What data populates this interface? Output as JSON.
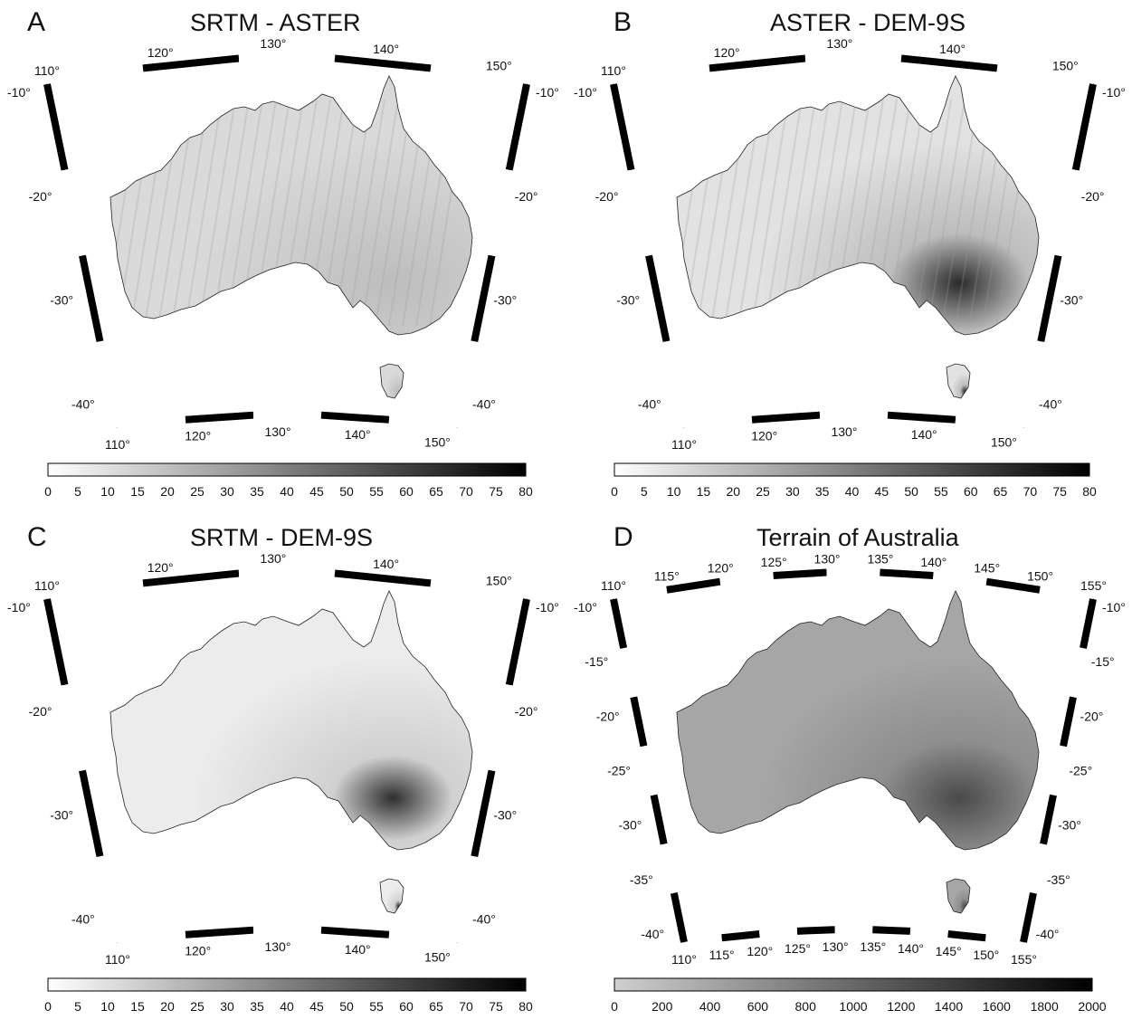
{
  "panels": [
    {
      "letter": "A",
      "title": "SRTM - ASTER",
      "top_lon_labels": [
        "110°",
        "120°",
        "130°",
        "140°",
        "150°"
      ],
      "bottom_lon_labels": [
        "110°",
        "120°",
        "130°",
        "140°",
        "150°"
      ],
      "lat_labels": [
        "-10°",
        "-20°",
        "-30°",
        "-40°"
      ],
      "colorbar_ticks": [
        "0",
        "5",
        "10",
        "15",
        "20",
        "25",
        "30",
        "35",
        "40",
        "45",
        "50",
        "55",
        "60",
        "65",
        "70",
        "75",
        "80"
      ],
      "shading": "light"
    },
    {
      "letter": "B",
      "title": "ASTER - DEM-9S",
      "top_lon_labels": [
        "110°",
        "120°",
        "130°",
        "140°",
        "150°"
      ],
      "bottom_lon_labels": [
        "110°",
        "120°",
        "130°",
        "140°",
        "150°"
      ],
      "lat_labels": [
        "-10°",
        "-20°",
        "-30°",
        "-40°"
      ],
      "colorbar_ticks": [
        "0",
        "5",
        "10",
        "15",
        "20",
        "25",
        "30",
        "35",
        "40",
        "45",
        "50",
        "55",
        "60",
        "65",
        "70",
        "75",
        "80"
      ],
      "shading": "medium"
    },
    {
      "letter": "C",
      "title": "SRTM - DEM-9S",
      "top_lon_labels": [
        "110°",
        "120°",
        "130°",
        "140°",
        "150°"
      ],
      "bottom_lon_labels": [
        "110°",
        "120°",
        "130°",
        "140°",
        "150°"
      ],
      "lat_labels": [
        "-10°",
        "-20°",
        "-30°",
        "-40°"
      ],
      "colorbar_ticks": [
        "0",
        "5",
        "10",
        "15",
        "20",
        "25",
        "30",
        "35",
        "40",
        "45",
        "50",
        "55",
        "60",
        "65",
        "70",
        "75",
        "80"
      ],
      "shading": "lightest"
    },
    {
      "letter": "D",
      "title": "Terrain of Australia",
      "top_lon_labels": [
        "110°",
        "115°",
        "120°",
        "125°",
        "130°",
        "135°",
        "140°",
        "145°",
        "150°",
        "155°"
      ],
      "bottom_lon_labels": [
        "110°",
        "115°",
        "120°",
        "125°",
        "130°",
        "135°",
        "140°",
        "145°",
        "150°",
        "155°"
      ],
      "lat_labels": [
        "-10°",
        "-15°",
        "-20°",
        "-25°",
        "-30°",
        "-35°",
        "-40°"
      ],
      "colorbar_ticks": [
        "0",
        "200",
        "400",
        "600",
        "800",
        "1000",
        "1200",
        "1400",
        "1600",
        "1800",
        "2000"
      ],
      "shading": "terrain"
    }
  ]
}
